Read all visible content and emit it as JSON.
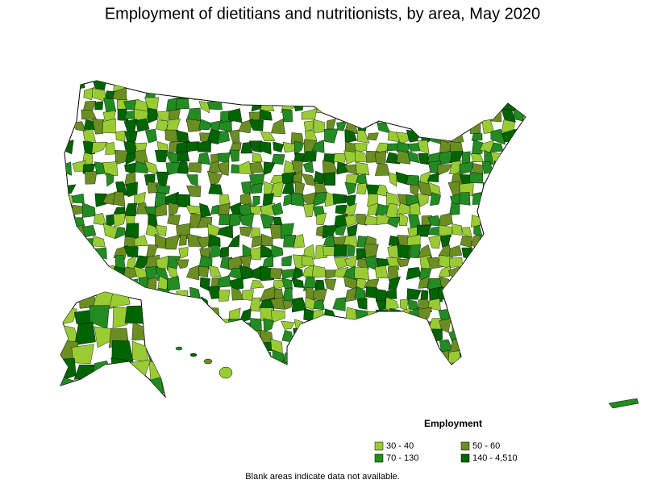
{
  "title": "Employment of dietitians and nutritionists, by area, May 2020",
  "legend": {
    "title": "Employment",
    "items": [
      {
        "label": "30 - 40",
        "color": "#99cc33"
      },
      {
        "label": "50 - 60",
        "color": "#6b8e23"
      },
      {
        "label": "70 - 130",
        "color": "#228b22"
      },
      {
        "label": "140 - 4,510",
        "color": "#006400"
      }
    ]
  },
  "note": "Blank areas indicate data not available."
}
